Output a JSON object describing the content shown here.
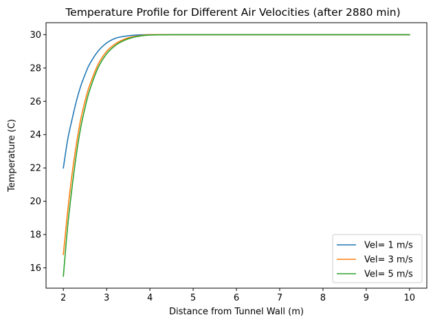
{
  "chart_data": {
    "type": "line",
    "title": "Temperature Profile for Different Air Velocities (after 2880 min)",
    "xlabel": "Distance from Tunnel Wall (m)",
    "ylabel": "Temperature (C)",
    "xlim": [
      1.6,
      10.4
    ],
    "ylim": [
      14.78,
      30.72
    ],
    "xticks": [
      2,
      3,
      4,
      5,
      6,
      7,
      8,
      9,
      10
    ],
    "yticks": [
      16,
      18,
      20,
      22,
      24,
      26,
      28,
      30
    ],
    "grid": false,
    "legend_position": "lower-right",
    "series": [
      {
        "name": "Vel= 1 m/s",
        "color": "#1f77b4",
        "x": [
          2.0,
          2.1,
          2.2,
          2.3,
          2.4,
          2.5,
          2.6,
          2.8,
          3.0,
          3.2,
          3.4,
          3.6,
          3.8,
          4.0,
          4.5,
          5.0,
          6.0,
          7.0,
          8.0,
          9.0,
          10.0
        ],
        "y": [
          22.0,
          23.7,
          24.9,
          26.0,
          26.9,
          27.6,
          28.2,
          29.0,
          29.5,
          29.78,
          29.9,
          29.96,
          29.99,
          30.0,
          30.0,
          30.0,
          30.0,
          30.0,
          30.0,
          30.0,
          30.0
        ]
      },
      {
        "name": "Vel= 3 m/s",
        "color": "#ff7f0e",
        "x": [
          2.0,
          2.1,
          2.2,
          2.3,
          2.4,
          2.5,
          2.6,
          2.8,
          3.0,
          3.2,
          3.4,
          3.6,
          3.8,
          4.0,
          4.5,
          5.0,
          6.0,
          7.0,
          8.0,
          9.0,
          10.0
        ],
        "y": [
          16.8,
          19.4,
          21.6,
          23.4,
          24.9,
          26.0,
          26.9,
          28.2,
          29.0,
          29.45,
          29.72,
          29.87,
          29.95,
          30.0,
          30.0,
          30.0,
          30.0,
          30.0,
          30.0,
          30.0,
          30.0
        ]
      },
      {
        "name": "Vel= 5 m/s",
        "color": "#2ca02c",
        "x": [
          2.0,
          2.1,
          2.2,
          2.3,
          2.4,
          2.5,
          2.6,
          2.8,
          3.0,
          3.2,
          3.4,
          3.6,
          3.8,
          4.0,
          4.5,
          5.0,
          6.0,
          7.0,
          8.0,
          9.0,
          10.0
        ],
        "y": [
          15.5,
          18.5,
          20.8,
          22.8,
          24.4,
          25.6,
          26.6,
          28.0,
          28.85,
          29.35,
          29.65,
          29.83,
          29.93,
          29.98,
          30.0,
          30.0,
          30.0,
          30.0,
          30.0,
          30.0,
          30.0
        ]
      }
    ]
  }
}
